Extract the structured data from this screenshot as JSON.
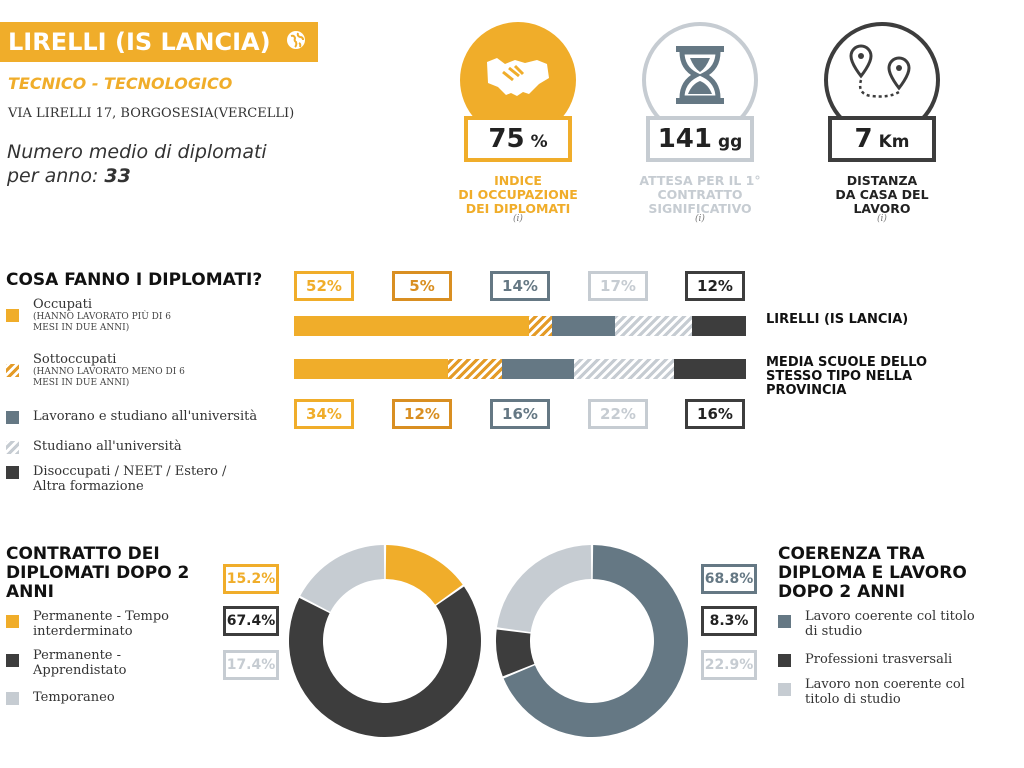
{
  "header": {
    "school_name": "LIRELLI (IS LANCIA)",
    "category": "TECNICO - TECNOLOGICO",
    "address": "VIA LIRELLI 17, BORGOSESIA(VERCELLI)",
    "avg_label_line1": "Numero medio di diplomati",
    "avg_label_line2": "per anno:",
    "avg_value": "33"
  },
  "stats": [
    {
      "icon": "handshake-icon",
      "value": "75",
      "unit": "%",
      "label": [
        "INDICE",
        "DI OCCUPAZIONE",
        "DEI DIPLOMATI"
      ],
      "info": "(i)",
      "color": "#f0ad2a"
    },
    {
      "icon": "hourglass-icon",
      "value": "141",
      "unit": "gg",
      "label": [
        "ATTESA PER IL 1°",
        "CONTRATTO",
        "SIGNIFICATIVO"
      ],
      "info": "(i)",
      "color": "#c6ccd2"
    },
    {
      "icon": "route-pins-icon",
      "value": "7",
      "unit": "Km",
      "label": [
        "DISTANZA",
        "DA CASA DEL",
        "LAVORO"
      ],
      "info": "(i)",
      "color": "#3d3d3d"
    }
  ],
  "what_they_do": {
    "title": "COSA FANNO I DIPLOMATI?",
    "legend": [
      {
        "label": "Occupati",
        "sub": [
          "(HANNO LAVORATO PIÙ DI 6",
          "MESI IN DUE ANNI)"
        ],
        "style": "solid",
        "color": "#f0ad2a"
      },
      {
        "label": "Sottoccupati",
        "sub": [
          "(HANNO LAVORATO MENO DI 6",
          "MESI IN DUE ANNI)"
        ],
        "style": "hatch",
        "color": "#e49b27"
      },
      {
        "label": "Lavorano e studiano all'università",
        "sub": [],
        "style": "solid",
        "color": "#657884"
      },
      {
        "label": "Studiano all'università",
        "sub": [],
        "style": "hatch",
        "color": "#c6ccd2"
      },
      {
        "label": "Disoccupati / NEET / Estero / Altra formazione",
        "sub": [],
        "style": "solid",
        "color": "#3d3d3d"
      }
    ]
  },
  "chart_data": [
    {
      "type": "bar",
      "stacked": true,
      "orientation": "horizontal",
      "title": "COSA FANNO I DIPLOMATI?",
      "categories": [
        "Occupati",
        "Sottoccupati",
        "Lavorano e studiano all'università",
        "Studiano all'università",
        "Disoccupati / NEET / Estero / Altra formazione"
      ],
      "series": [
        {
          "name": "LIRELLI (IS LANCIA)",
          "values": [
            52,
            5,
            14,
            17,
            12
          ],
          "labels": [
            "52%",
            "5%",
            "14%",
            "17%",
            "12%"
          ]
        },
        {
          "name": "MEDIA SCUOLE DELLO STESSO TIPO NELLA PROVINCIA",
          "values": [
            34,
            12,
            16,
            22,
            16
          ],
          "labels": [
            "34%",
            "12%",
            "16%",
            "22%",
            "16%"
          ]
        }
      ],
      "colors": [
        "#f0ad2a",
        "#e49b27",
        "#657884",
        "#c6ccd2",
        "#3d3d3d"
      ],
      "hatched": [
        false,
        true,
        false,
        true,
        false
      ],
      "box_colors": [
        "#f0ad2a",
        "#d98f22",
        "#657884",
        "#c6ccd2",
        "#3d3d3d"
      ],
      "series_label_lines": [
        [
          "LIRELLI (IS LANCIA)"
        ],
        [
          "MEDIA SCUOLE DELLO",
          "STESSO TIPO NELLA",
          "PROVINCIA"
        ]
      ]
    },
    {
      "type": "pie",
      "donut": true,
      "title": "CONTRATTO DEI DIPLOMATI DOPO 2 ANNI",
      "title_lines": [
        "CONTRATTO DEI",
        "DIPLOMATI DOPO 2",
        "ANNI"
      ],
      "categories": [
        "Permanente - Tempo interderminato",
        "Permanente - Apprendistato",
        "Temporaneo"
      ],
      "legend_lines": [
        [
          "Permanente - Tempo",
          "interderminato"
        ],
        [
          "Permanente -",
          "Apprendistato"
        ],
        [
          "Temporaneo"
        ]
      ],
      "values": [
        15.2,
        67.4,
        17.4
      ],
      "labels": [
        "15.2%",
        "67.4%",
        "17.4%"
      ],
      "colors": [
        "#f0ad2a",
        "#3d3d3d",
        "#c6ccd2"
      ]
    },
    {
      "type": "pie",
      "donut": true,
      "title": "COERENZA TRA DIPLOMA E LAVORO DOPO 2 ANNI",
      "title_lines": [
        "COERENZA TRA",
        "DIPLOMA E LAVORO",
        "DOPO 2 ANNI"
      ],
      "categories": [
        "Lavoro coerente col titolo di studio",
        "Professioni trasversali",
        "Lavoro non coerente col titolo di studio"
      ],
      "legend_lines": [
        [
          "Lavoro coerente col titolo",
          "di studio"
        ],
        [
          "Professioni trasversali"
        ],
        [
          "Lavoro non coerente col",
          "titolo di studio"
        ]
      ],
      "values": [
        68.8,
        8.3,
        22.9
      ],
      "labels": [
        "68.8%",
        "8.3%",
        "22.9%"
      ],
      "colors": [
        "#657884",
        "#3d3d3d",
        "#c6ccd2"
      ]
    }
  ]
}
